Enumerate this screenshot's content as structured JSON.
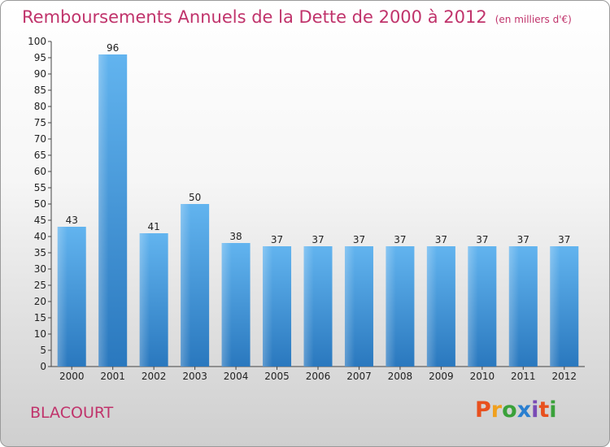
{
  "chart_data": {
    "type": "bar",
    "title": "Remboursements Annuels de la Dette de 2000 à 2012",
    "subtitle": "(en milliers d'€)",
    "categories": [
      "2000",
      "2001",
      "2002",
      "2003",
      "2004",
      "2005",
      "2006",
      "2007",
      "2008",
      "2009",
      "2010",
      "2011",
      "2012"
    ],
    "values": [
      43,
      96,
      41,
      50,
      38,
      37,
      37,
      37,
      37,
      37,
      37,
      37,
      37
    ],
    "ylim": [
      0,
      100
    ],
    "yticks": [
      0,
      5,
      10,
      15,
      20,
      25,
      30,
      35,
      40,
      45,
      50,
      55,
      60,
      65,
      70,
      75,
      80,
      85,
      90,
      95,
      100
    ],
    "grid": false,
    "bar_color": "#3a8fd6",
    "title_color": "#c0336b"
  },
  "footer": {
    "commune": "BLACOURT",
    "logo_text": "Proxiti"
  },
  "logo_colors": [
    "#e8501e",
    "#f0a01e",
    "#3aa13a",
    "#2a7fd0",
    "#7a4bb5",
    "#e8501e",
    "#3aa13a"
  ]
}
